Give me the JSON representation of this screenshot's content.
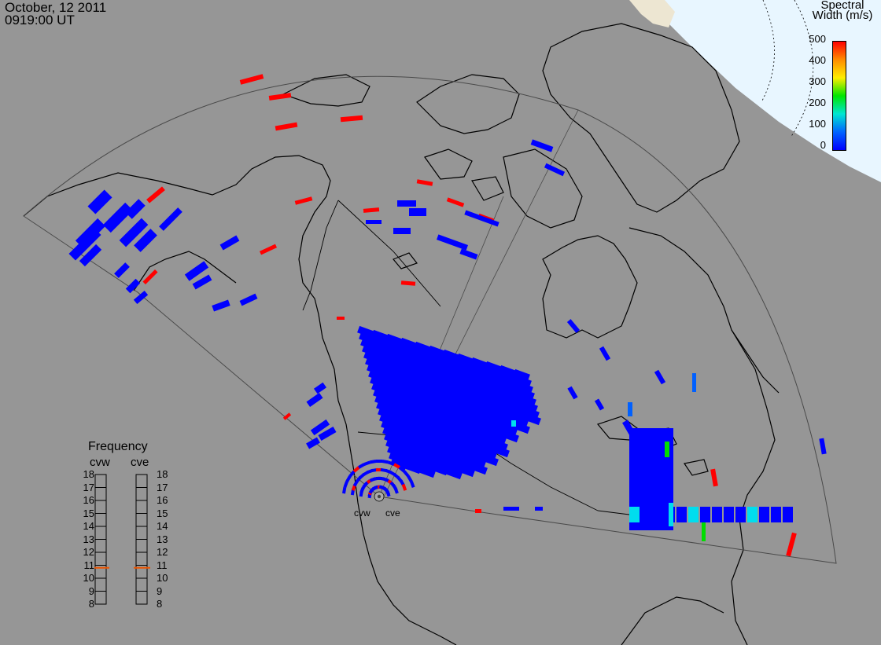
{
  "header": {
    "date": "October, 12 2011",
    "time": "0919:00 UT"
  },
  "colorbar": {
    "title_line1": "Spectral",
    "title_line2": "Width (m/s)",
    "ticks": [
      "500",
      "400",
      "300",
      "200",
      "100",
      "0"
    ],
    "colors": [
      "#ff0000",
      "#ff8c00",
      "#ffee00",
      "#00e600",
      "#00e6d2",
      "#0064ff",
      "#0000ff"
    ]
  },
  "frequency_panel": {
    "title": "Frequency",
    "radars": [
      {
        "label": "cvw",
        "level": 10.8
      },
      {
        "label": "cve",
        "level": 10.8
      }
    ],
    "ticks": [
      "18",
      "17",
      "16",
      "15",
      "14",
      "13",
      "12",
      "11",
      "10",
      "9",
      "8"
    ]
  },
  "radar_sites": [
    "cvw",
    "cve"
  ],
  "colors": {
    "background": "#969696",
    "polar_region": "#e8f6ff",
    "land_pale": "#ede6d2",
    "coastline": "#000000",
    "fov_outline": "#4a4a4a",
    "marker": "#ee5500"
  }
}
